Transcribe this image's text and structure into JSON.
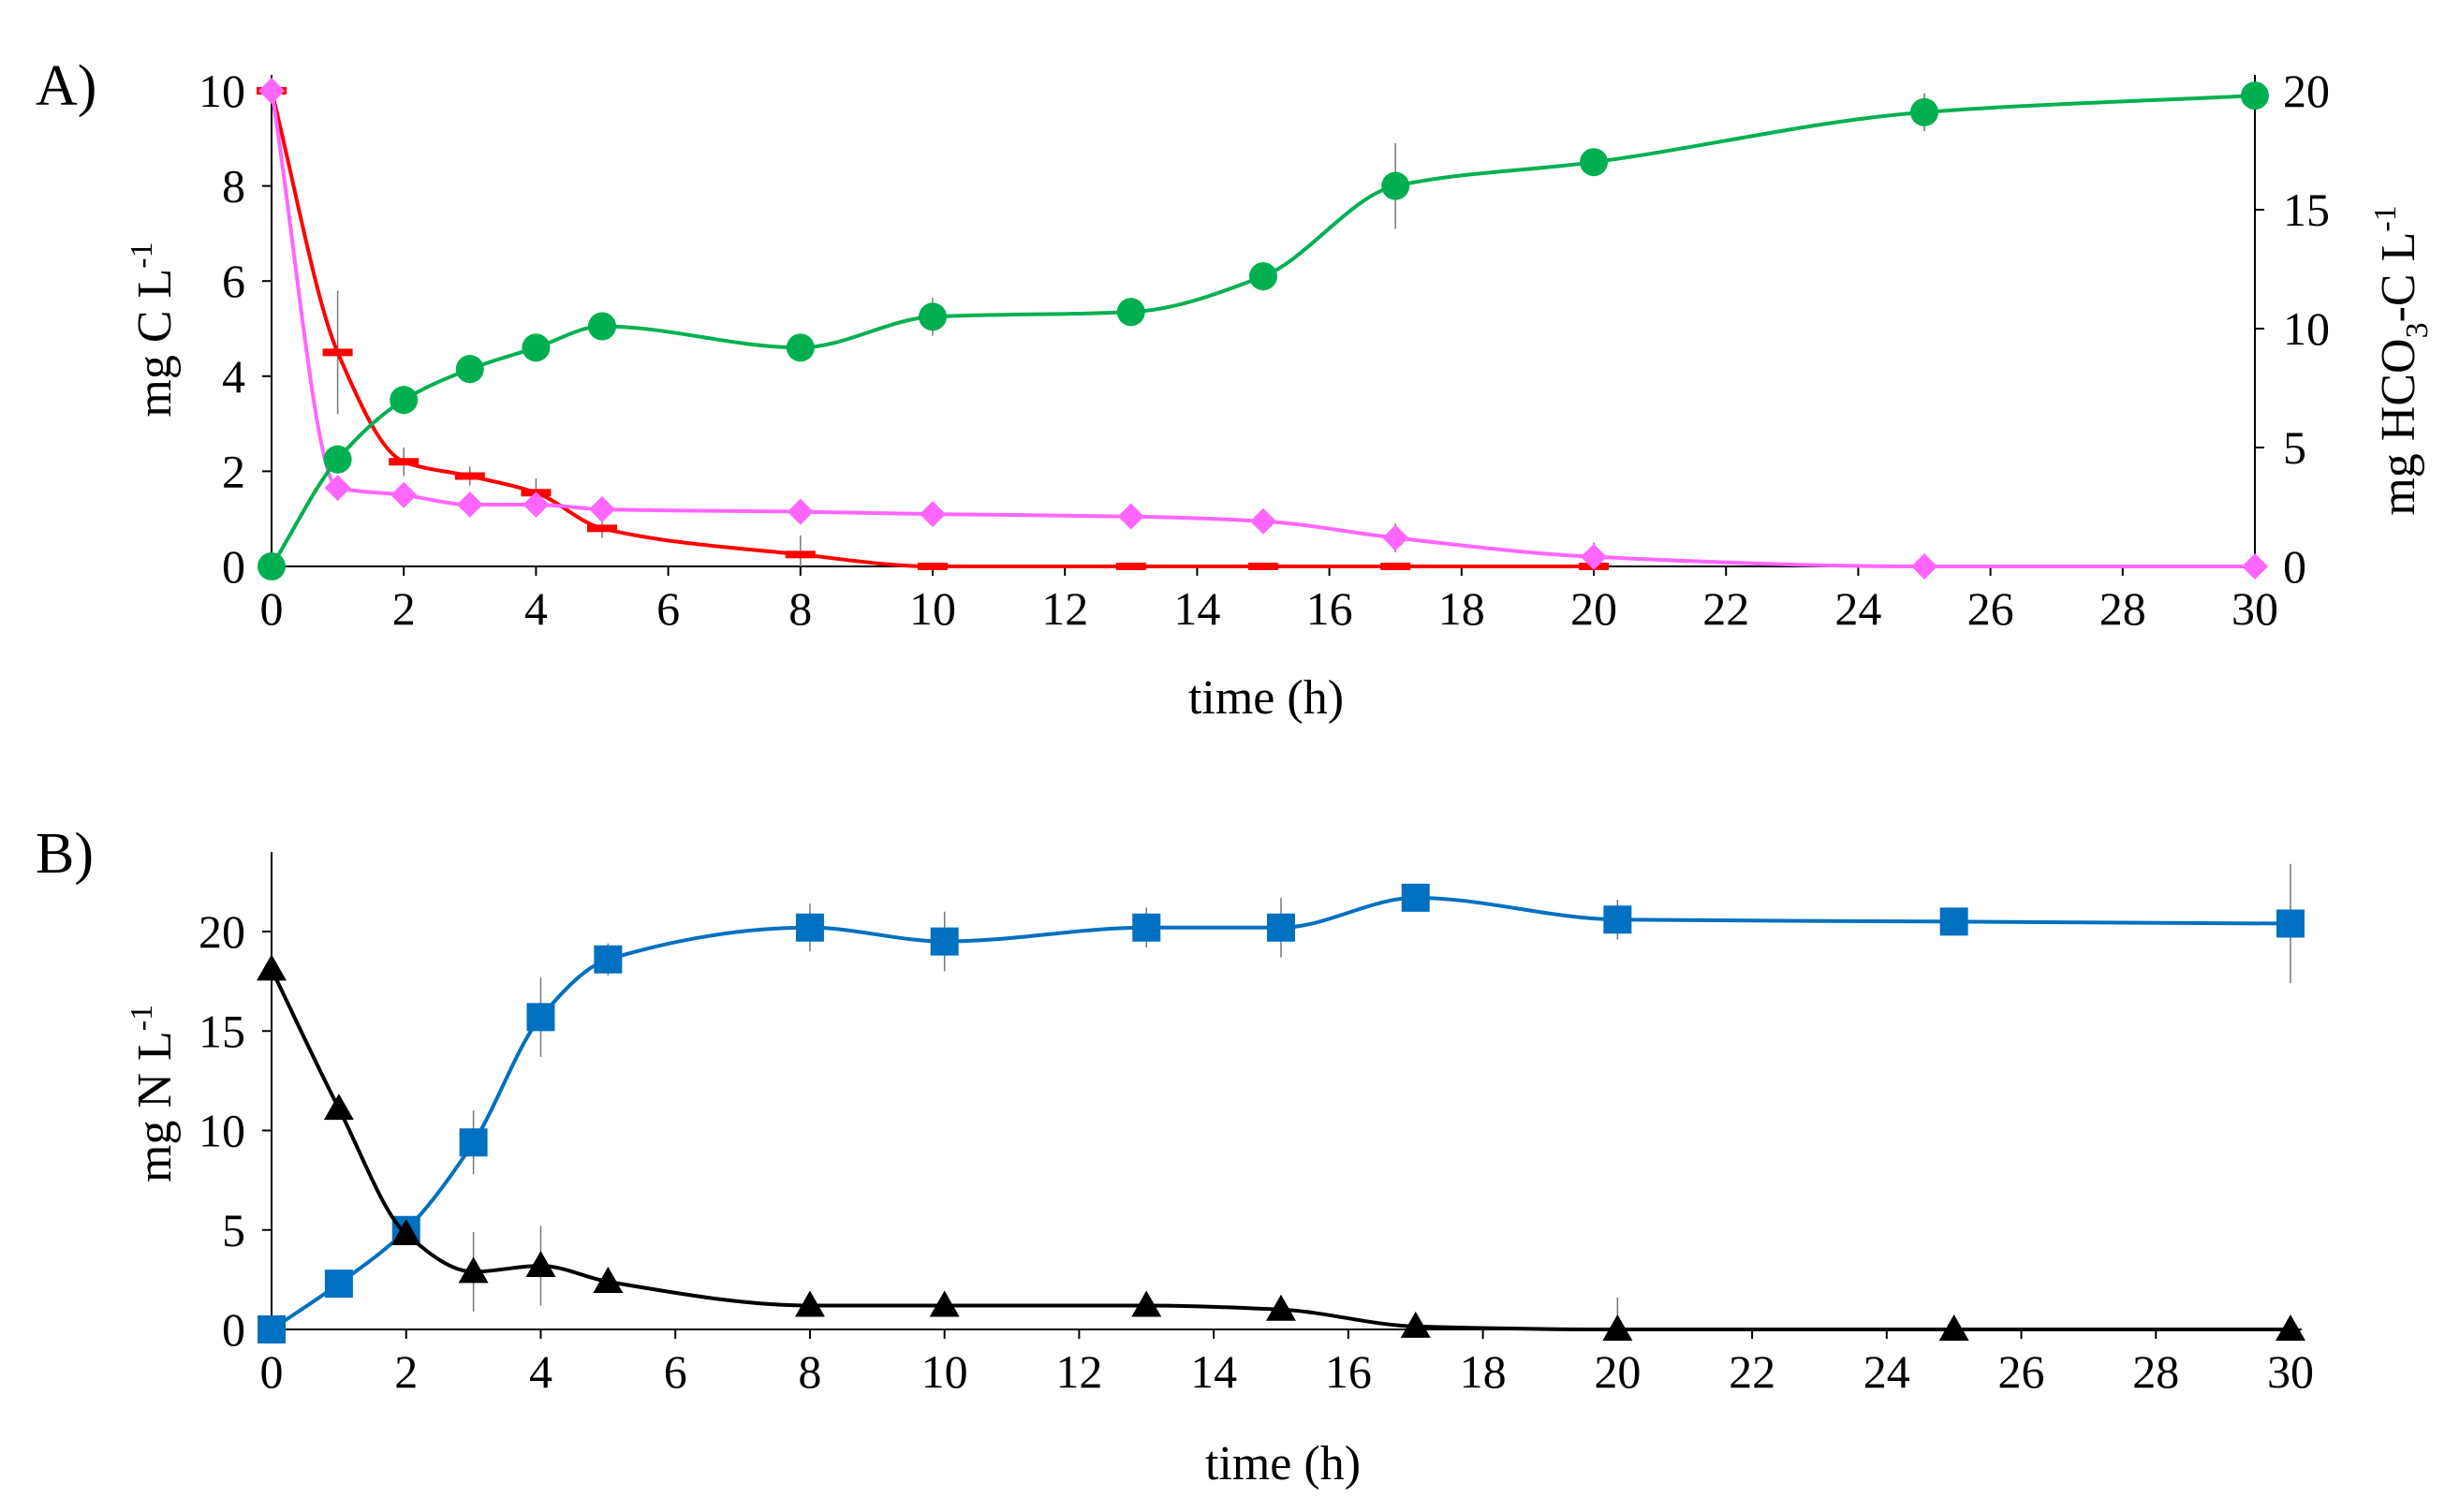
{
  "chart_data": [
    {
      "type": "line",
      "panel_label": "A)",
      "xlabel": "time (h)",
      "ylabel": "mg C L",
      "ylabel_sup": "-1",
      "y2label": "mg HCO",
      "y2label_sub": "3",
      "y2label_tail": "-C L",
      "y2label_sup": "-1",
      "xlim": [
        0,
        30
      ],
      "ylim": [
        0,
        10
      ],
      "y2lim": [
        0,
        20
      ],
      "xticks": [
        0,
        2,
        4,
        6,
        8,
        10,
        12,
        14,
        16,
        18,
        20,
        22,
        24,
        26,
        28,
        30
      ],
      "yticks": [
        0,
        2,
        4,
        6,
        8,
        10
      ],
      "y2ticks": [
        0,
        5,
        10,
        15,
        20
      ],
      "series": [
        {
          "name": "red-dash",
          "axis": "left",
          "marker": "dash",
          "color": "#ff0000",
          "x": [
            0,
            1,
            2,
            3,
            4,
            5,
            8,
            10,
            13,
            15,
            17,
            20
          ],
          "values": [
            10,
            4.5,
            2.2,
            1.9,
            1.55,
            0.8,
            0.25,
            0,
            0,
            0,
            0,
            0
          ],
          "err": [
            0,
            1.3,
            0.3,
            0.2,
            0.3,
            0.2,
            0.4,
            0,
            0,
            0,
            0,
            0
          ]
        },
        {
          "name": "pink-diamond",
          "axis": "left",
          "marker": "diamond",
          "color": "#ff66ff",
          "x": [
            0,
            1,
            2,
            3,
            4,
            5,
            8,
            10,
            13,
            15,
            17,
            20,
            25,
            30
          ],
          "values": [
            10,
            1.65,
            1.5,
            1.3,
            1.3,
            1.2,
            1.15,
            1.1,
            1.05,
            0.95,
            0.6,
            0.2,
            0,
            0
          ],
          "err": [
            0,
            0.1,
            0.2,
            0.2,
            0.2,
            0.1,
            0.1,
            0.1,
            0.1,
            0.1,
            0.3,
            0.3,
            0,
            0
          ]
        },
        {
          "name": "green-circle",
          "axis": "right",
          "marker": "circle",
          "color": "#00b050",
          "x": [
            0,
            1,
            2,
            3,
            4,
            5,
            8,
            10,
            13,
            15,
            17,
            20,
            25,
            30
          ],
          "values": [
            0,
            4.5,
            7,
            8.3,
            9.2,
            10.1,
            9.2,
            10.5,
            10.7,
            12.2,
            16,
            17,
            19.1,
            19.8
          ],
          "err": [
            0,
            0.6,
            0.6,
            0.6,
            0.5,
            0.4,
            0.4,
            0.8,
            0.6,
            0.6,
            1.8,
            0.5,
            0.8,
            0.4
          ]
        }
      ]
    },
    {
      "type": "line",
      "panel_label": "B)",
      "xlabel": "time (h)",
      "ylabel": "mg N L",
      "ylabel_sup": "-1",
      "xlim": [
        0,
        30
      ],
      "ylim": [
        0,
        24
      ],
      "xticks": [
        0,
        2,
        4,
        6,
        8,
        10,
        12,
        14,
        16,
        18,
        20,
        22,
        24,
        26,
        28,
        30
      ],
      "yticks": [
        0,
        5,
        10,
        15,
        20
      ],
      "series": [
        {
          "name": "blue-square",
          "axis": "left",
          "marker": "square",
          "color": "#0070c0",
          "x": [
            0,
            1,
            2,
            3,
            4,
            5,
            8,
            10,
            13,
            15,
            17,
            20,
            25,
            30
          ],
          "values": [
            0,
            2.3,
            5,
            9.4,
            15.7,
            18.6,
            20.2,
            19.5,
            20.2,
            20.2,
            21.7,
            20.6,
            20.5,
            20.4
          ],
          "err": [
            0,
            0.3,
            0.5,
            1.6,
            2.0,
            0.8,
            1.2,
            1.5,
            1.0,
            1.5,
            0.5,
            1.0,
            0.3,
            3.0
          ]
        },
        {
          "name": "black-triangle",
          "axis": "left",
          "marker": "triangle",
          "color": "#000000",
          "x": [
            0,
            1,
            2,
            3,
            4,
            5,
            8,
            10,
            13,
            15,
            17,
            20,
            25,
            30
          ],
          "values": [
            18.1,
            11.1,
            4.8,
            2.9,
            3.2,
            2.4,
            1.2,
            1.2,
            1.2,
            1.0,
            0.15,
            0,
            0,
            0
          ],
          "err": [
            0,
            0.3,
            0.5,
            2.0,
            2.0,
            0.5,
            0.5,
            0.3,
            0.4,
            0.5,
            0.2,
            1.6,
            0,
            0
          ]
        }
      ]
    }
  ]
}
